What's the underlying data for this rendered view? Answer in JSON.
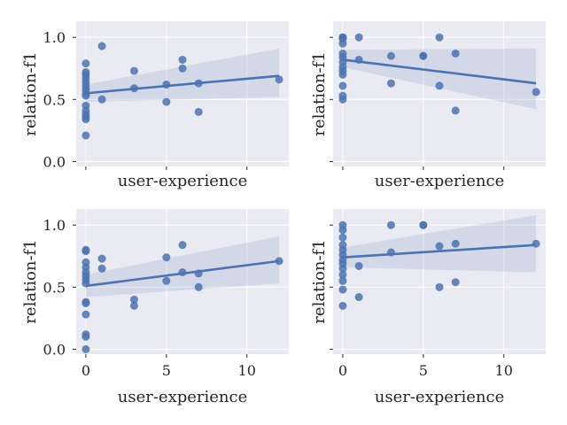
{
  "chart_data": [
    {
      "type": "scatter",
      "xlabel": "user-experience",
      "ylabel": "relation-f1",
      "xlim": [
        -0.6,
        12.6
      ],
      "ylim": [
        -0.04,
        1.13
      ],
      "xticks": [],
      "yticks": [
        0.0,
        0.5,
        1.0
      ],
      "ytick_labels": [
        "0.0",
        "0.5",
        "1.0"
      ],
      "grid": true,
      "regression": {
        "y_at_x0": 0.55,
        "y_at_x12": 0.69,
        "ci_lower_at_x12": 0.52,
        "ci_upper_at_x12": 0.91,
        "ci_lower_at_x0": 0.48,
        "ci_upper_at_x0": 0.62
      },
      "points": [
        [
          0,
          0.21
        ],
        [
          0,
          0.34
        ],
        [
          0,
          0.36
        ],
        [
          0,
          0.38
        ],
        [
          0,
          0.41
        ],
        [
          0,
          0.45
        ],
        [
          0,
          0.53
        ],
        [
          0,
          0.55
        ],
        [
          0,
          0.58
        ],
        [
          0,
          0.61
        ],
        [
          0,
          0.64
        ],
        [
          0,
          0.67
        ],
        [
          0,
          0.7
        ],
        [
          0,
          0.72
        ],
        [
          0,
          0.79
        ],
        [
          1,
          0.5
        ],
        [
          1,
          0.93
        ],
        [
          3,
          0.59
        ],
        [
          3,
          0.73
        ],
        [
          5,
          0.48
        ],
        [
          5,
          0.62
        ],
        [
          6,
          0.75
        ],
        [
          6,
          0.82
        ],
        [
          7,
          0.4
        ],
        [
          7,
          0.63
        ],
        [
          12,
          0.66
        ]
      ]
    },
    {
      "type": "scatter",
      "xlabel": "user-experience",
      "ylabel": "relation-f1",
      "xlim": [
        -0.6,
        12.6
      ],
      "ylim": [
        -0.04,
        1.13
      ],
      "xticks": [],
      "yticks": [],
      "grid": true,
      "regression": {
        "y_at_x0": 0.82,
        "y_at_x12": 0.63,
        "ci_lower_at_x12": 0.42,
        "ci_upper_at_x12": 0.91,
        "ci_lower_at_x0": 0.76,
        "ci_upper_at_x0": 0.9
      },
      "points": [
        [
          0,
          0.5
        ],
        [
          0,
          0.53
        ],
        [
          0,
          0.61
        ],
        [
          0,
          0.7
        ],
        [
          0,
          0.73
        ],
        [
          0,
          0.76
        ],
        [
          0,
          0.8
        ],
        [
          0,
          0.84
        ],
        [
          0,
          0.87
        ],
        [
          0,
          0.95
        ],
        [
          0,
          0.99
        ],
        [
          0,
          1.0
        ],
        [
          0,
          1.0
        ],
        [
          1,
          0.82
        ],
        [
          1,
          1.0
        ],
        [
          3,
          0.63
        ],
        [
          3,
          0.85
        ],
        [
          5,
          0.85
        ],
        [
          5,
          0.85
        ],
        [
          6,
          0.61
        ],
        [
          6,
          1.0
        ],
        [
          7,
          0.41
        ],
        [
          7,
          0.87
        ],
        [
          12,
          0.56
        ]
      ]
    },
    {
      "type": "scatter",
      "xlabel": "user-experience",
      "ylabel": "relation-f1",
      "xlim": [
        -0.6,
        12.6
      ],
      "ylim": [
        -0.04,
        1.13
      ],
      "xticks": [
        0,
        5,
        10
      ],
      "xtick_labels": [
        "0",
        "5",
        "10"
      ],
      "yticks": [
        0.0,
        0.5,
        1.0
      ],
      "ytick_labels": [
        "0.0",
        "0.5",
        "1.0"
      ],
      "grid": true,
      "regression": {
        "y_at_x0": 0.51,
        "y_at_x12": 0.71,
        "ci_lower_at_x12": 0.53,
        "ci_upper_at_x12": 0.91,
        "ci_lower_at_x0": 0.42,
        "ci_upper_at_x0": 0.6
      },
      "points": [
        [
          0,
          0.0
        ],
        [
          0,
          0.1
        ],
        [
          0,
          0.12
        ],
        [
          0,
          0.28
        ],
        [
          0,
          0.37
        ],
        [
          0,
          0.38
        ],
        [
          0,
          0.53
        ],
        [
          0,
          0.56
        ],
        [
          0,
          0.59
        ],
        [
          0,
          0.62
        ],
        [
          0,
          0.66
        ],
        [
          0,
          0.7
        ],
        [
          0,
          0.79
        ],
        [
          0,
          0.8
        ],
        [
          1,
          0.65
        ],
        [
          1,
          0.73
        ],
        [
          3,
          0.35
        ],
        [
          3,
          0.4
        ],
        [
          5,
          0.55
        ],
        [
          5,
          0.74
        ],
        [
          6,
          0.62
        ],
        [
          6,
          0.84
        ],
        [
          7,
          0.5
        ],
        [
          7,
          0.61
        ],
        [
          12,
          0.71
        ]
      ]
    },
    {
      "type": "scatter",
      "xlabel": "user-experience",
      "ylabel": "relation-f1",
      "xlim": [
        -0.6,
        12.6
      ],
      "ylim": [
        -0.04,
        1.13
      ],
      "xticks": [
        0,
        5,
        10
      ],
      "xtick_labels": [
        "0",
        "5",
        "10"
      ],
      "yticks": [],
      "grid": true,
      "regression": {
        "y_at_x0": 0.74,
        "y_at_x12": 0.84,
        "ci_lower_at_x12": 0.62,
        "ci_upper_at_x12": 1.08,
        "ci_lower_at_x0": 0.66,
        "ci_upper_at_x0": 0.82
      },
      "points": [
        [
          0,
          0.35
        ],
        [
          0,
          0.48
        ],
        [
          0,
          0.55
        ],
        [
          0,
          0.6
        ],
        [
          0,
          0.65
        ],
        [
          0,
          0.69
        ],
        [
          0,
          0.72
        ],
        [
          0,
          0.76
        ],
        [
          0,
          0.8
        ],
        [
          0,
          0.84
        ],
        [
          0,
          0.9
        ],
        [
          0,
          0.96
        ],
        [
          0,
          1.0
        ],
        [
          1,
          0.42
        ],
        [
          1,
          0.67
        ],
        [
          3,
          0.78
        ],
        [
          3,
          1.0
        ],
        [
          5,
          1.0
        ],
        [
          5,
          1.0
        ],
        [
          6,
          0.5
        ],
        [
          6,
          0.83
        ],
        [
          7,
          0.54
        ],
        [
          7,
          0.85
        ],
        [
          12,
          0.85
        ]
      ]
    }
  ]
}
